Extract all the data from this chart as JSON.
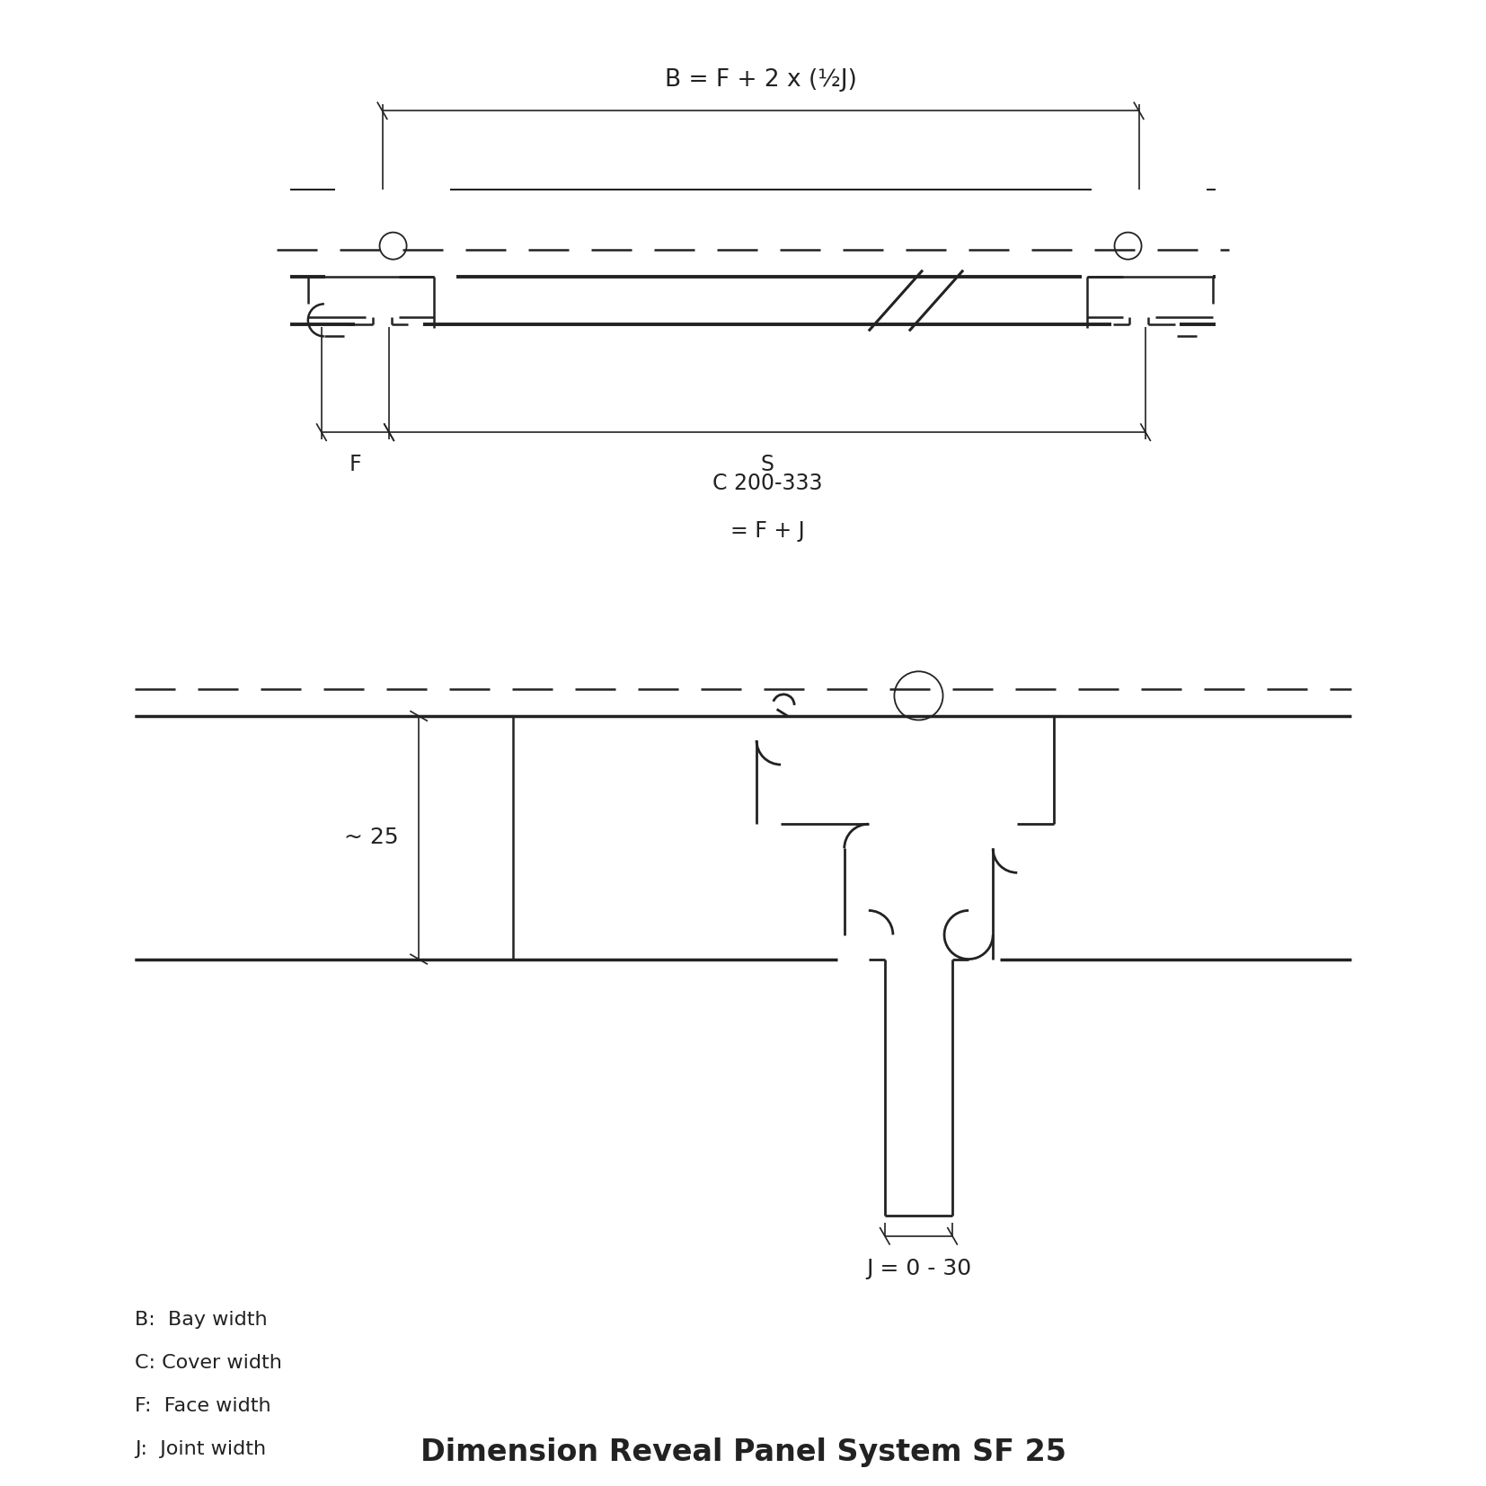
{
  "title": "Dimension Reveal Panel System SF 25",
  "background_color": "#ffffff",
  "line_color": "#222222",
  "labels": {
    "B_formula": "B = F + 2 x (½J)",
    "C_label": "C 200-333",
    "C_formula": "= F + J",
    "F_label": "F",
    "S_label": "S",
    "approx25": "~ 25",
    "J_formula": "J = 0 - 30",
    "legend_B": "B:  Bay width",
    "legend_C": "C: Cover width",
    "legend_F": "F:  Face width",
    "legend_J": "J:  Joint width"
  },
  "figsize": [
    16.54,
    16.54
  ],
  "dpi": 100
}
